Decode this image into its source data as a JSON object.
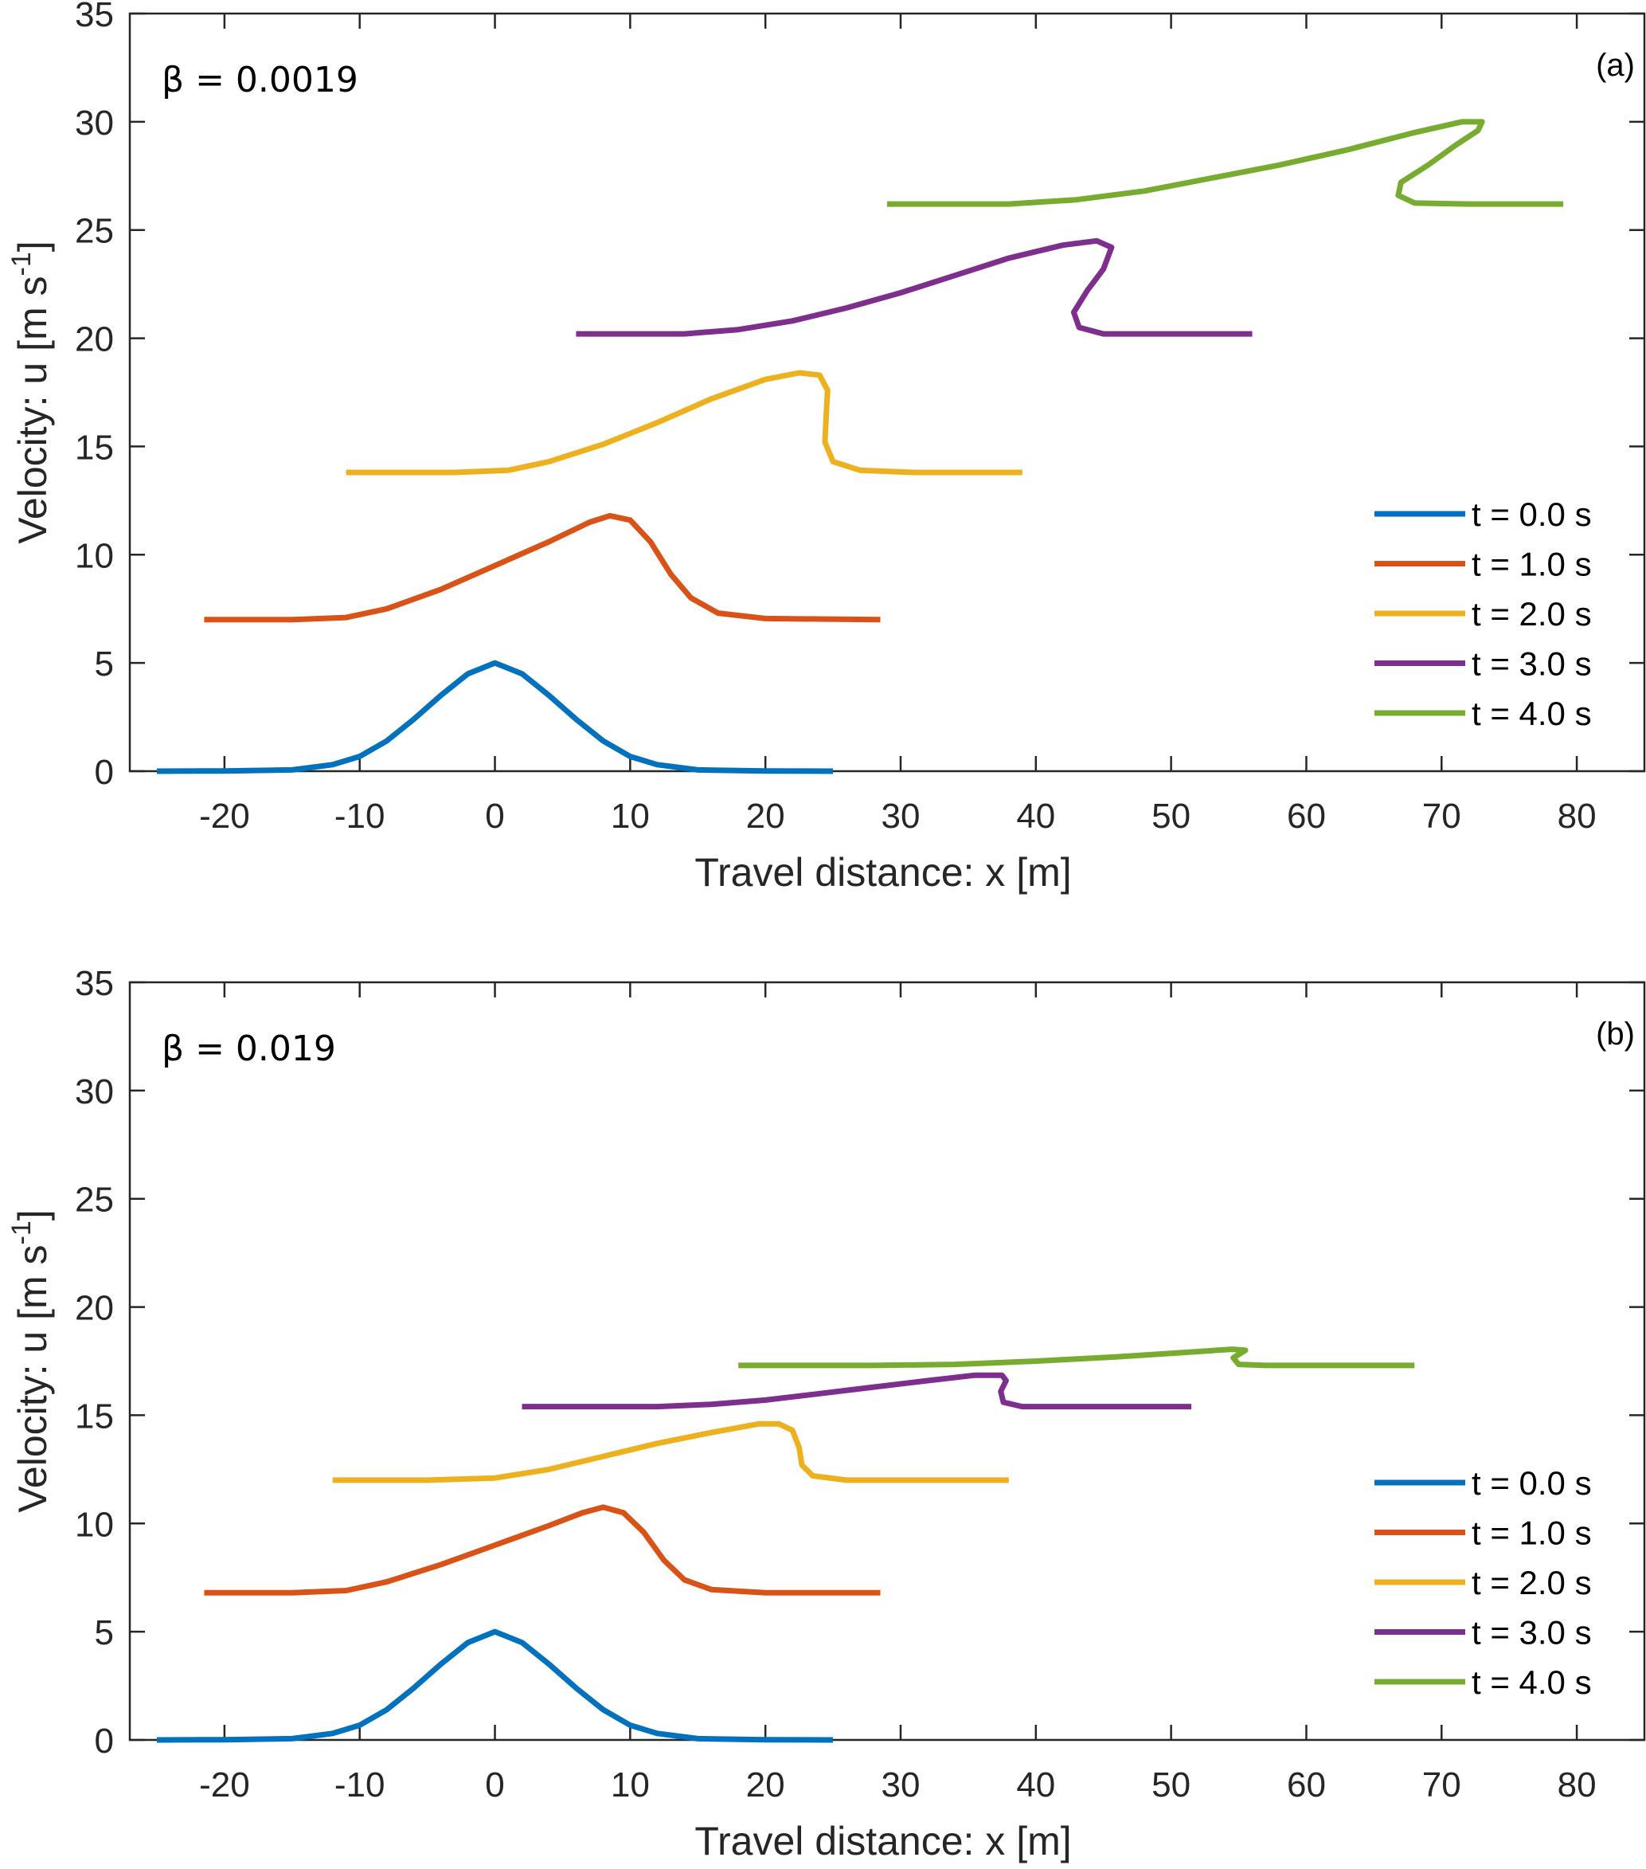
{
  "chart_data": [
    {
      "type": "line",
      "panel_label": "(a)",
      "annotation": "β = 0.0019",
      "xlabel": "Travel distance: x [m]",
      "ylabel": "Velocity: u [m s",
      "ylabel_sup": "-1",
      "ylabel_end": "]",
      "xlim": [
        -27,
        85
      ],
      "ylim": [
        0,
        35
      ],
      "xticks": [
        -20,
        -10,
        0,
        10,
        20,
        30,
        40,
        50,
        60,
        70,
        80
      ],
      "yticks": [
        0,
        5,
        10,
        15,
        20,
        25,
        30,
        35
      ],
      "legend_position": "right-middle",
      "grid": false,
      "series": [
        {
          "name": "t = 0.0 s",
          "color": "#0072BD",
          "points": [
            [
              -25,
              0
            ],
            [
              -20,
              0.01
            ],
            [
              -15,
              0.06
            ],
            [
              -12,
              0.3
            ],
            [
              -10,
              0.68
            ],
            [
              -8,
              1.4
            ],
            [
              -6,
              2.4
            ],
            [
              -4,
              3.5
            ],
            [
              -2,
              4.5
            ],
            [
              0,
              5.0
            ],
            [
              2,
              4.5
            ],
            [
              4,
              3.5
            ],
            [
              6,
              2.4
            ],
            [
              8,
              1.4
            ],
            [
              10,
              0.68
            ],
            [
              12,
              0.3
            ],
            [
              15,
              0.06
            ],
            [
              20,
              0.01
            ],
            [
              25,
              0
            ]
          ]
        },
        {
          "name": "t = 1.0 s",
          "color": "#D95319",
          "points": [
            [
              -21.5,
              7.0
            ],
            [
              -15,
              7.0
            ],
            [
              -11,
              7.1
            ],
            [
              -8,
              7.5
            ],
            [
              -4,
              8.4
            ],
            [
              0,
              9.5
            ],
            [
              4,
              10.6
            ],
            [
              7,
              11.5
            ],
            [
              8.5,
              11.8
            ],
            [
              10,
              11.6
            ],
            [
              11.5,
              10.6
            ],
            [
              13,
              9.1
            ],
            [
              14.5,
              8.0
            ],
            [
              16.5,
              7.3
            ],
            [
              20,
              7.05
            ],
            [
              28.5,
              7.0
            ]
          ]
        },
        {
          "name": "t = 2.0 s",
          "color": "#EDB120",
          "points": [
            [
              -11,
              13.8
            ],
            [
              -3,
              13.8
            ],
            [
              1,
              13.9
            ],
            [
              4,
              14.3
            ],
            [
              8,
              15.1
            ],
            [
              12,
              16.1
            ],
            [
              16,
              17.2
            ],
            [
              20,
              18.1
            ],
            [
              22.5,
              18.4
            ],
            [
              24,
              18.3
            ],
            [
              24.6,
              17.6
            ],
            [
              24.5,
              16.5
            ],
            [
              24.4,
              15.2
            ],
            [
              25,
              14.3
            ],
            [
              27,
              13.9
            ],
            [
              31,
              13.8
            ],
            [
              39,
              13.8
            ]
          ]
        },
        {
          "name": "t = 3.0 s",
          "color": "#7E2F8E",
          "points": [
            [
              6,
              20.2
            ],
            [
              14,
              20.2
            ],
            [
              18,
              20.4
            ],
            [
              22,
              20.8
            ],
            [
              26,
              21.4
            ],
            [
              30,
              22.1
            ],
            [
              34,
              22.9
            ],
            [
              38,
              23.7
            ],
            [
              42,
              24.3
            ],
            [
              44.5,
              24.5
            ],
            [
              45.6,
              24.2
            ],
            [
              45,
              23.2
            ],
            [
              43.8,
              22.2
            ],
            [
              42.8,
              21.2
            ],
            [
              43.2,
              20.5
            ],
            [
              45,
              20.2
            ],
            [
              50,
              20.2
            ],
            [
              56,
              20.2
            ]
          ]
        },
        {
          "name": "t = 4.0 s",
          "color": "#77AC30",
          "points": [
            [
              29,
              26.2
            ],
            [
              38,
              26.2
            ],
            [
              43,
              26.4
            ],
            [
              48,
              26.8
            ],
            [
              53,
              27.4
            ],
            [
              58,
              28.0
            ],
            [
              63,
              28.7
            ],
            [
              68,
              29.5
            ],
            [
              71.5,
              30.0
            ],
            [
              73,
              30.0
            ],
            [
              72.7,
              29.6
            ],
            [
              71,
              28.9
            ],
            [
              69,
              28.0
            ],
            [
              67,
              27.2
            ],
            [
              66.8,
              26.6
            ],
            [
              68,
              26.25
            ],
            [
              72,
              26.2
            ],
            [
              79,
              26.2
            ]
          ]
        }
      ]
    },
    {
      "type": "line",
      "panel_label": "(b)",
      "annotation": "β = 0.019",
      "xlabel": "Travel distance: x [m]",
      "ylabel": "Velocity: u [m s",
      "ylabel_sup": "-1",
      "ylabel_end": "]",
      "xlim": [
        -27,
        85
      ],
      "ylim": [
        0,
        35
      ],
      "xticks": [
        -20,
        -10,
        0,
        10,
        20,
        30,
        40,
        50,
        60,
        70,
        80
      ],
      "yticks": [
        0,
        5,
        10,
        15,
        20,
        25,
        30,
        35
      ],
      "legend_position": "right-middle",
      "grid": false,
      "series": [
        {
          "name": "t = 0.0 s",
          "color": "#0072BD",
          "points": [
            [
              -25,
              0
            ],
            [
              -20,
              0.01
            ],
            [
              -15,
              0.06
            ],
            [
              -12,
              0.3
            ],
            [
              -10,
              0.68
            ],
            [
              -8,
              1.4
            ],
            [
              -6,
              2.4
            ],
            [
              -4,
              3.5
            ],
            [
              -2,
              4.5
            ],
            [
              0,
              5.0
            ],
            [
              2,
              4.5
            ],
            [
              4,
              3.5
            ],
            [
              6,
              2.4
            ],
            [
              8,
              1.4
            ],
            [
              10,
              0.68
            ],
            [
              12,
              0.3
            ],
            [
              15,
              0.06
            ],
            [
              20,
              0.01
            ],
            [
              25,
              0
            ]
          ]
        },
        {
          "name": "t = 1.0 s",
          "color": "#D95319",
          "points": [
            [
              -21.5,
              6.8
            ],
            [
              -15,
              6.8
            ],
            [
              -11,
              6.9
            ],
            [
              -8,
              7.3
            ],
            [
              -4,
              8.1
            ],
            [
              0,
              9.0
            ],
            [
              4,
              9.9
            ],
            [
              6.5,
              10.5
            ],
            [
              8,
              10.75
            ],
            [
              9.5,
              10.5
            ],
            [
              11,
              9.6
            ],
            [
              12.5,
              8.3
            ],
            [
              14,
              7.4
            ],
            [
              16,
              6.95
            ],
            [
              20,
              6.8
            ],
            [
              28.5,
              6.8
            ]
          ]
        },
        {
          "name": "t = 2.0 s",
          "color": "#EDB120",
          "points": [
            [
              -12,
              12.0
            ],
            [
              -5,
              12.0
            ],
            [
              0,
              12.1
            ],
            [
              4,
              12.5
            ],
            [
              8,
              13.1
            ],
            [
              12,
              13.7
            ],
            [
              16,
              14.2
            ],
            [
              19.5,
              14.6
            ],
            [
              21,
              14.6
            ],
            [
              22,
              14.3
            ],
            [
              22.5,
              13.5
            ],
            [
              22.7,
              12.7
            ],
            [
              23.5,
              12.2
            ],
            [
              26,
              12.0
            ],
            [
              30,
              12.0
            ],
            [
              38,
              12.0
            ]
          ]
        },
        {
          "name": "t = 3.0 s",
          "color": "#7E2F8E",
          "points": [
            [
              2,
              15.4
            ],
            [
              12,
              15.4
            ],
            [
              16,
              15.5
            ],
            [
              20,
              15.7
            ],
            [
              24,
              16.0
            ],
            [
              28,
              16.3
            ],
            [
              32,
              16.6
            ],
            [
              35.5,
              16.85
            ],
            [
              37.5,
              16.85
            ],
            [
              37.8,
              16.6
            ],
            [
              37.4,
              16.1
            ],
            [
              37.6,
              15.6
            ],
            [
              39,
              15.4
            ],
            [
              44,
              15.4
            ],
            [
              51.5,
              15.4
            ]
          ]
        },
        {
          "name": "t = 4.0 s",
          "color": "#77AC30",
          "points": [
            [
              18,
              17.3
            ],
            [
              28,
              17.3
            ],
            [
              34,
              17.35
            ],
            [
              40,
              17.5
            ],
            [
              46,
              17.7
            ],
            [
              51,
              17.9
            ],
            [
              54.5,
              18.05
            ],
            [
              55.5,
              18.0
            ],
            [
              54.6,
              17.65
            ],
            [
              55,
              17.35
            ],
            [
              57,
              17.3
            ],
            [
              62,
              17.3
            ],
            [
              68,
              17.3
            ]
          ]
        }
      ]
    }
  ]
}
